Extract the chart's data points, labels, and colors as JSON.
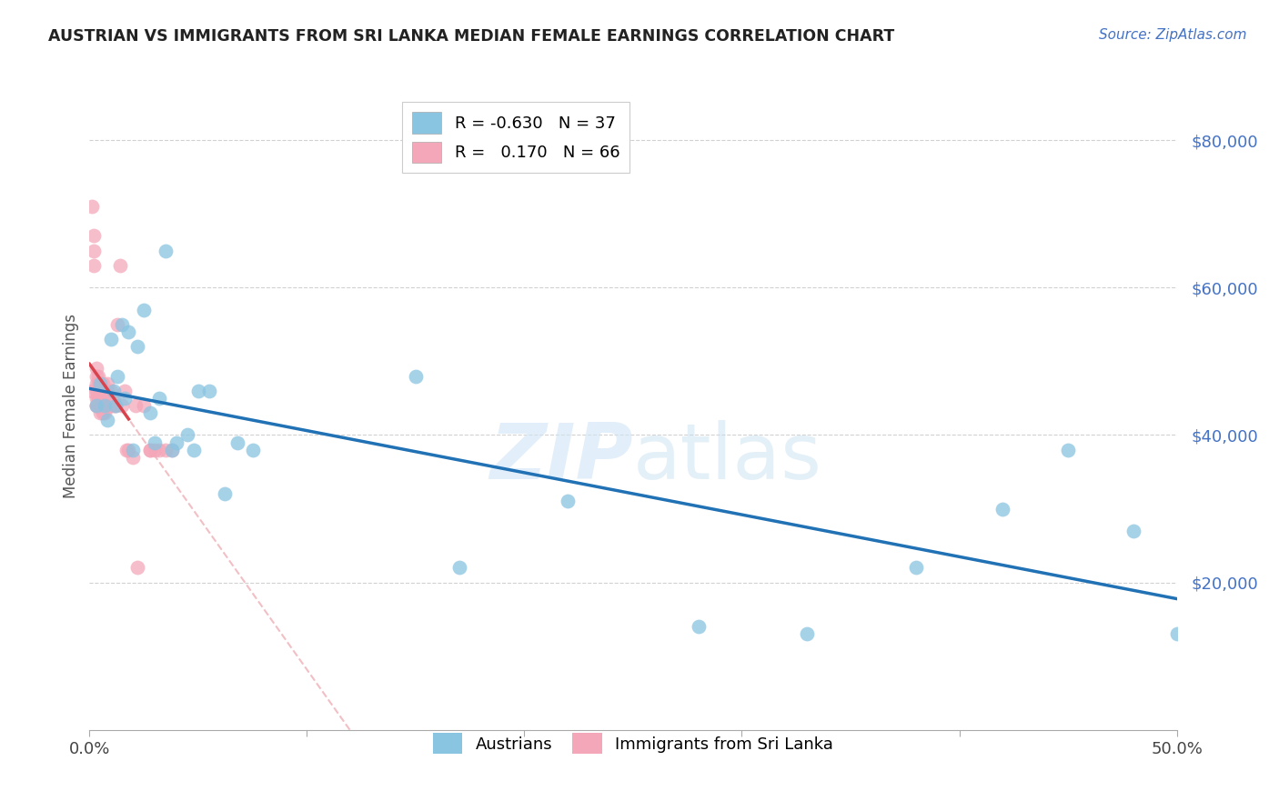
{
  "title": "AUSTRIAN VS IMMIGRANTS FROM SRI LANKA MEDIAN FEMALE EARNINGS CORRELATION CHART",
  "source": "Source: ZipAtlas.com",
  "ylabel": "Median Female Earnings",
  "ytick_values": [
    20000,
    40000,
    60000,
    80000
  ],
  "xlim": [
    0.0,
    0.5
  ],
  "ylim": [
    0,
    88000
  ],
  "legend_blue_r": "-0.630",
  "legend_blue_n": "37",
  "legend_pink_r": "0.170",
  "legend_pink_n": "66",
  "blue_color": "#89c4e1",
  "pink_color": "#f4a7b9",
  "blue_line_color": "#2171b5",
  "pink_line_color": "#d9434e",
  "pink_dashed_color": "#f0b8be",
  "watermark_zip": "ZIP",
  "watermark_atlas": "atlas",
  "austrians_x": [
    0.003,
    0.005,
    0.007,
    0.008,
    0.01,
    0.011,
    0.012,
    0.013,
    0.015,
    0.016,
    0.018,
    0.02,
    0.022,
    0.025,
    0.028,
    0.03,
    0.032,
    0.035,
    0.038,
    0.04,
    0.045,
    0.048,
    0.05,
    0.055,
    0.062,
    0.068,
    0.075,
    0.15,
    0.17,
    0.22,
    0.28,
    0.33,
    0.38,
    0.42,
    0.45,
    0.48,
    0.5
  ],
  "austrians_y": [
    44000,
    47000,
    44000,
    42000,
    53000,
    46000,
    44000,
    48000,
    55000,
    45000,
    54000,
    38000,
    52000,
    57000,
    43000,
    39000,
    45000,
    65000,
    38000,
    39000,
    40000,
    38000,
    46000,
    46000,
    32000,
    39000,
    38000,
    48000,
    22000,
    31000,
    14000,
    13000,
    22000,
    30000,
    38000,
    27000,
    13000
  ],
  "srilanka_x": [
    0.001,
    0.001,
    0.002,
    0.002,
    0.002,
    0.003,
    0.003,
    0.003,
    0.003,
    0.003,
    0.003,
    0.003,
    0.004,
    0.004,
    0.004,
    0.004,
    0.004,
    0.004,
    0.004,
    0.004,
    0.005,
    0.005,
    0.005,
    0.005,
    0.005,
    0.005,
    0.005,
    0.005,
    0.006,
    0.006,
    0.006,
    0.006,
    0.006,
    0.006,
    0.007,
    0.007,
    0.007,
    0.007,
    0.008,
    0.008,
    0.008,
    0.008,
    0.009,
    0.009,
    0.01,
    0.01,
    0.01,
    0.011,
    0.011,
    0.012,
    0.013,
    0.014,
    0.015,
    0.016,
    0.017,
    0.018,
    0.02,
    0.021,
    0.022,
    0.025,
    0.028,
    0.028,
    0.03,
    0.032,
    0.035,
    0.038
  ],
  "srilanka_y": [
    46000,
    71000,
    63000,
    65000,
    67000,
    44000,
    45000,
    46000,
    47000,
    48000,
    49000,
    44000,
    44000,
    45000,
    45000,
    46000,
    46000,
    47000,
    48000,
    44000,
    43000,
    44000,
    44000,
    45000,
    45000,
    46000,
    46000,
    47000,
    43000,
    44000,
    44000,
    45000,
    46000,
    47000,
    43000,
    44000,
    45000,
    46000,
    44000,
    45000,
    46000,
    47000,
    44000,
    45000,
    44000,
    45000,
    46000,
    44000,
    45000,
    44000,
    55000,
    63000,
    44000,
    46000,
    38000,
    38000,
    37000,
    44000,
    22000,
    44000,
    38000,
    38000,
    38000,
    38000,
    38000,
    38000
  ]
}
